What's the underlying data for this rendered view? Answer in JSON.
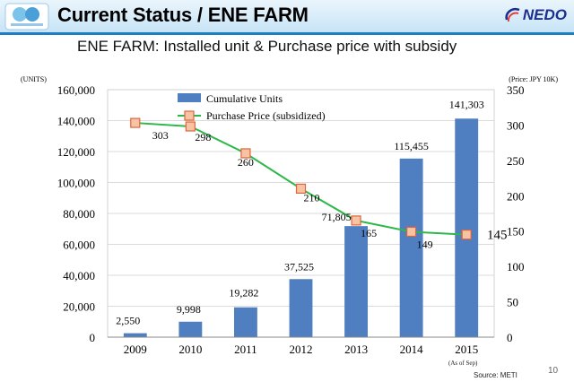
{
  "header": {
    "title": "Current Status / ENE FARM",
    "brand": "NEDO",
    "accent_color": "#1c7fc4"
  },
  "subtitle": "ENE FARM: Installed unit & Purchase price with subsidy",
  "chart_data": {
    "type": "bar",
    "title": "",
    "categories": [
      "2009",
      "2010",
      "2011",
      "2012",
      "2013",
      "2014",
      "2015"
    ],
    "series": [
      {
        "name": "Cumulative Units",
        "type": "bar",
        "axis": "left",
        "color": "#4f7fc0",
        "values": [
          2550,
          9998,
          19282,
          37525,
          71805,
          115455,
          141303
        ],
        "labels": [
          "2,550",
          "9,998",
          "19,282",
          "37,525",
          "71,805",
          "115,455",
          "141,303"
        ]
      },
      {
        "name": "Purchase Price (subsidized)",
        "type": "line",
        "axis": "right",
        "color": "#2eb84a",
        "marker_color": "#f6c4a4",
        "values": [
          303,
          298,
          260,
          210,
          165,
          149,
          145
        ],
        "labels": [
          "303",
          "298",
          "260",
          "210",
          "165",
          "149",
          "145"
        ]
      }
    ],
    "y_left": {
      "label": "(UNITS)",
      "range": [
        0,
        160000
      ],
      "ticks": [
        "0",
        "20,000",
        "40,000",
        "60,000",
        "80,000",
        "100,000",
        "120,000",
        "140,000",
        "160,000"
      ]
    },
    "y_right": {
      "label": "(Price: JPY 10K)",
      "range": [
        0,
        350
      ],
      "ticks": [
        "0",
        "50",
        "100",
        "150",
        "200",
        "250",
        "300",
        "350"
      ]
    },
    "grid": true,
    "legend": "top-center"
  },
  "footer": {
    "note": "(As of Sep)",
    "source": "Source: METI",
    "page": "10"
  }
}
